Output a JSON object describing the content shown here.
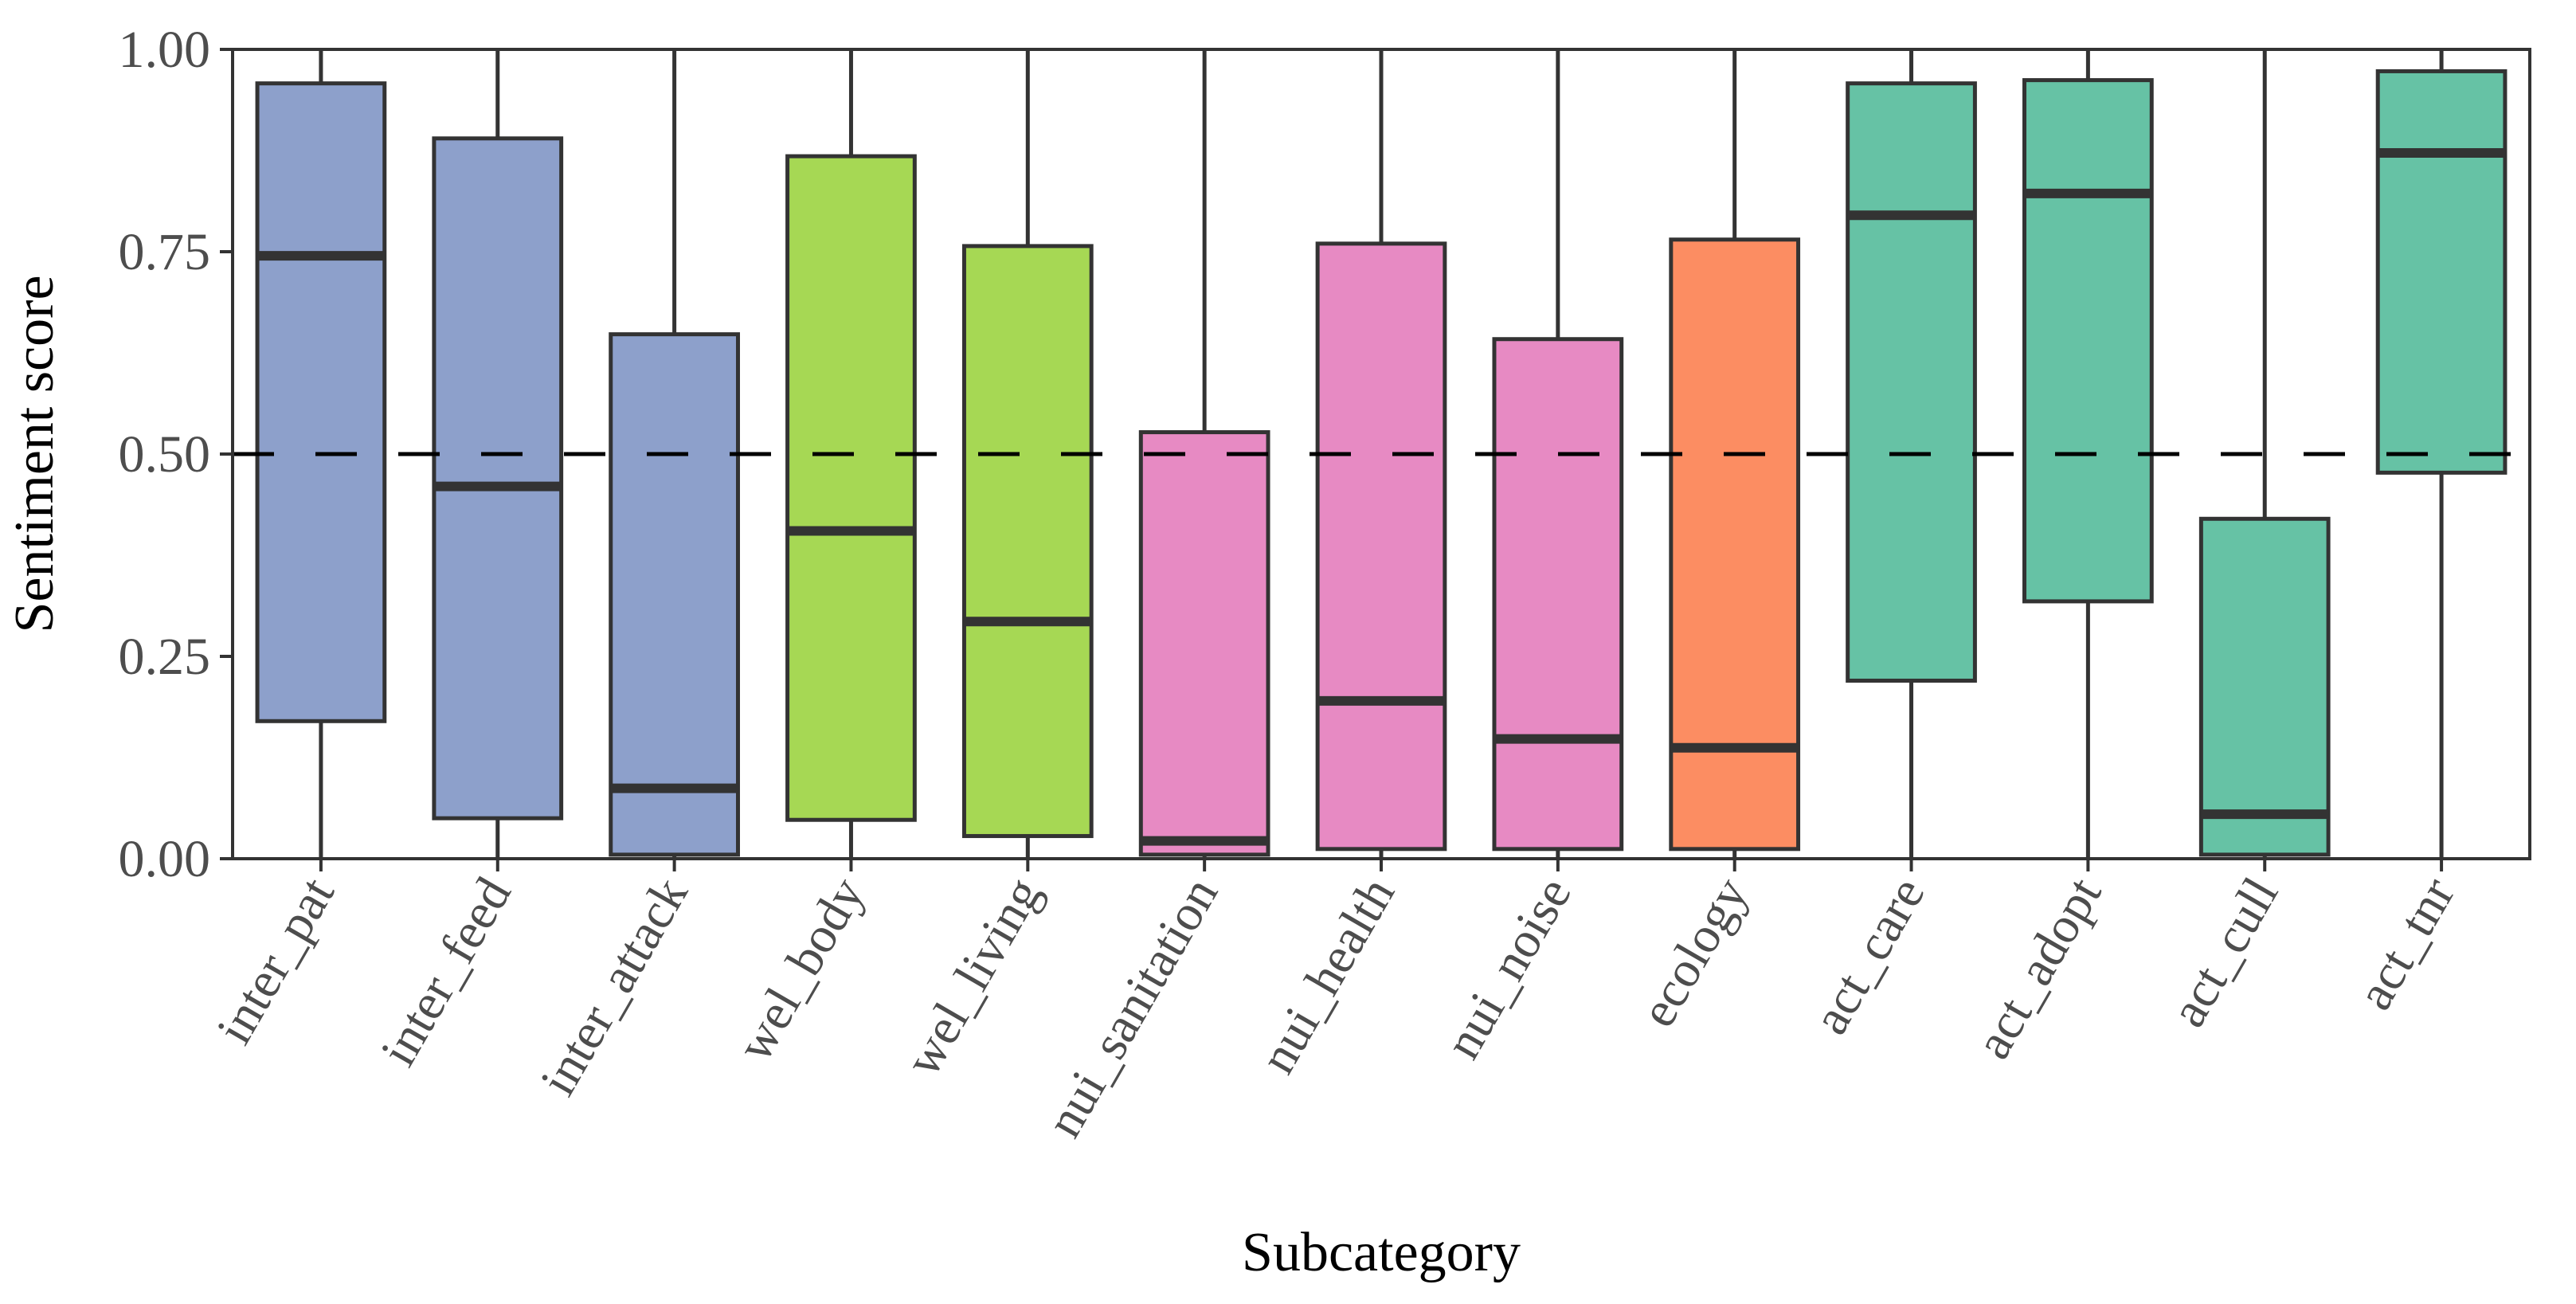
{
  "chart_data": {
    "type": "boxplot",
    "title": "",
    "xlabel": "Subcategory",
    "ylabel": "Sentiment score",
    "ylim": [
      0,
      1
    ],
    "yticks": [
      "0.00",
      "0.25",
      "0.50",
      "0.75",
      "1.00"
    ],
    "reference_line": {
      "y": 0.5,
      "style": "dashed"
    },
    "grid": false,
    "legend": "none",
    "boxes": [
      {
        "category": "inter_pat",
        "color": "#8DA0CB",
        "min": 0.0,
        "q1": 0.17,
        "median": 0.745,
        "q3": 0.958,
        "max": 1.0
      },
      {
        "category": "inter_feed",
        "color": "#8DA0CB",
        "min": 0.0,
        "q1": 0.05,
        "median": 0.46,
        "q3": 0.89,
        "max": 1.0
      },
      {
        "category": "inter_attack",
        "color": "#8DA0CB",
        "min": 0.0,
        "q1": 0.005,
        "median": 0.087,
        "q3": 0.648,
        "max": 1.0
      },
      {
        "category": "wel_body",
        "color": "#A6D854",
        "min": 0.0,
        "q1": 0.048,
        "median": 0.405,
        "q3": 0.868,
        "max": 1.0
      },
      {
        "category": "wel_living",
        "color": "#A6D854",
        "min": 0.0,
        "q1": 0.028,
        "median": 0.293,
        "q3": 0.757,
        "max": 1.0
      },
      {
        "category": "nui_sanitation",
        "color": "#E78AC3",
        "min": 0.0,
        "q1": 0.005,
        "median": 0.022,
        "q3": 0.527,
        "max": 1.0
      },
      {
        "category": "nui_health",
        "color": "#E78AC3",
        "min": 0.0,
        "q1": 0.012,
        "median": 0.195,
        "q3": 0.76,
        "max": 1.0
      },
      {
        "category": "nui_noise",
        "color": "#E78AC3",
        "min": 0.0,
        "q1": 0.012,
        "median": 0.148,
        "q3": 0.642,
        "max": 1.0
      },
      {
        "category": "ecology",
        "color": "#FC8D62",
        "min": 0.0,
        "q1": 0.012,
        "median": 0.137,
        "q3": 0.765,
        "max": 1.0
      },
      {
        "category": "act_care",
        "color": "#66C2A5",
        "min": 0.0,
        "q1": 0.22,
        "median": 0.795,
        "q3": 0.958,
        "max": 1.0
      },
      {
        "category": "act_adopt",
        "color": "#66C2A5",
        "min": 0.0,
        "q1": 0.318,
        "median": 0.822,
        "q3": 0.962,
        "max": 1.0
      },
      {
        "category": "act_cull",
        "color": "#66C2A5",
        "min": 0.0,
        "q1": 0.005,
        "median": 0.055,
        "q3": 0.42,
        "max": 1.0
      },
      {
        "category": "act_tnr",
        "color": "#66C2A5",
        "min": 0.0,
        "q1": 0.477,
        "median": 0.872,
        "q3": 0.973,
        "max": 1.0
      }
    ]
  }
}
